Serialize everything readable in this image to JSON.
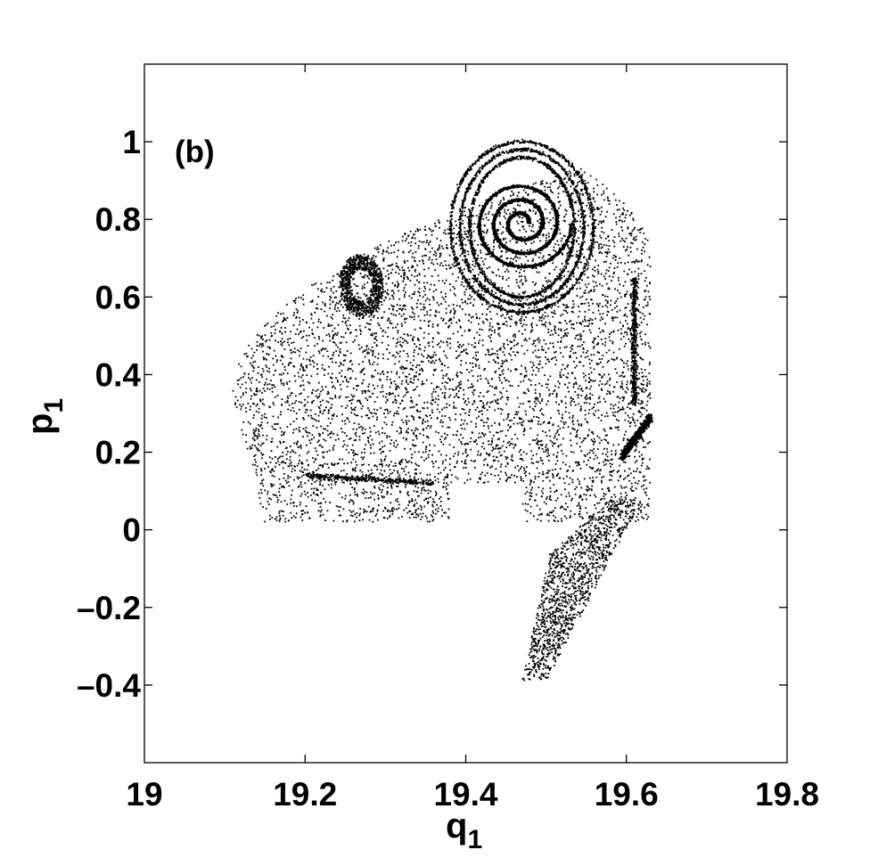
{
  "chart_data": {
    "type": "scatter",
    "panel_label": "(b)",
    "xlabel": {
      "main": "q",
      "sub": "1"
    },
    "ylabel": {
      "main": "p",
      "sub": "1"
    },
    "xlim": [
      19.0,
      19.8
    ],
    "ylim": [
      -0.6,
      1.2
    ],
    "xticks": [
      19.0,
      19.2,
      19.4,
      19.6,
      19.8
    ],
    "xtick_labels": [
      "19",
      "19.2",
      "19.4",
      "19.6",
      "19.8"
    ],
    "yticks": [
      -0.4,
      -0.2,
      0,
      0.2,
      0.4,
      0.6,
      0.8,
      1.0
    ],
    "ytick_labels": [
      "–0.4",
      "–0.2",
      "0",
      "0.2",
      "0.4",
      "0.6",
      "0.8",
      "1"
    ],
    "grid": false,
    "marker_color": "#000000",
    "regions": {
      "main_cloud": {
        "x_range": [
          19.11,
          19.63
        ],
        "y_range": [
          0.02,
          1.02
        ]
      },
      "tail": {
        "x_range": [
          19.47,
          19.62
        ],
        "y_range": [
          -0.39,
          0.05
        ]
      },
      "spiral_center": [
        19.47,
        0.79
      ],
      "small_island_center": [
        19.26,
        0.62
      ]
    }
  }
}
